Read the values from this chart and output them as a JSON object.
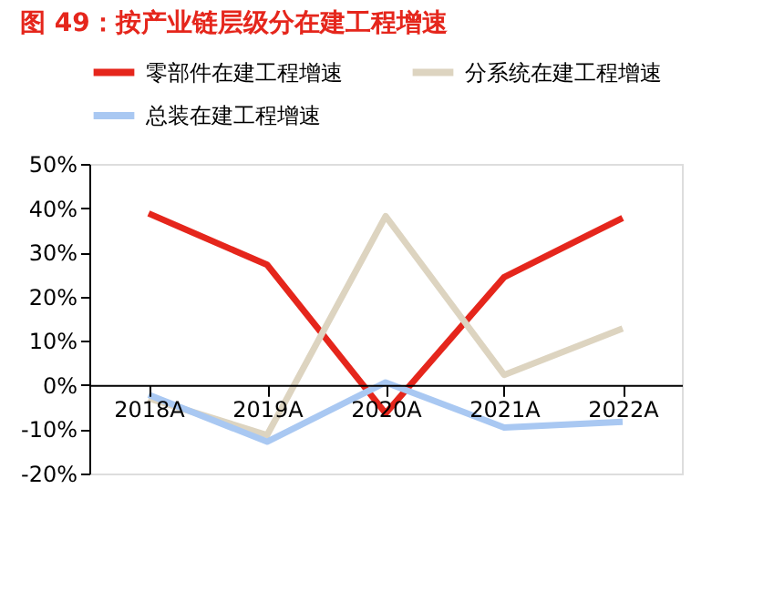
{
  "chart_data": {
    "type": "line",
    "title": "图 49：按产业链层级分在建工程增速",
    "categories": [
      "2018A",
      "2019A",
      "2020A",
      "2021A",
      "2022A"
    ],
    "series": [
      {
        "name": "零部件在建工程增速",
        "color": "#e5261c",
        "values": [
          38.8,
          27.2,
          -6.4,
          24.4,
          37.8
        ]
      },
      {
        "name": "分系统在建工程增速",
        "color": "#ddd4c0",
        "values": [
          -3,
          -11.3,
          38.2,
          2.3,
          12.8
        ]
      },
      {
        "name": "总装在建工程增速",
        "color": "#a9c8f2",
        "values": [
          -2.2,
          -12.8,
          0.6,
          -9.6,
          -8.3
        ]
      }
    ],
    "ylim": [
      -20,
      50
    ],
    "yticks": [
      {
        "value": -20,
        "label": "-20%"
      },
      {
        "value": -10,
        "label": "-10%"
      },
      {
        "value": 0,
        "label": "0%"
      },
      {
        "value": 10,
        "label": "10%"
      },
      {
        "value": 20,
        "label": "20%"
      },
      {
        "value": 30,
        "label": "30%"
      },
      {
        "value": 40,
        "label": "40%"
      },
      {
        "value": 50,
        "label": "50%"
      }
    ],
    "grid": false,
    "legend": "top",
    "marker": "none",
    "line_style": "solid"
  }
}
